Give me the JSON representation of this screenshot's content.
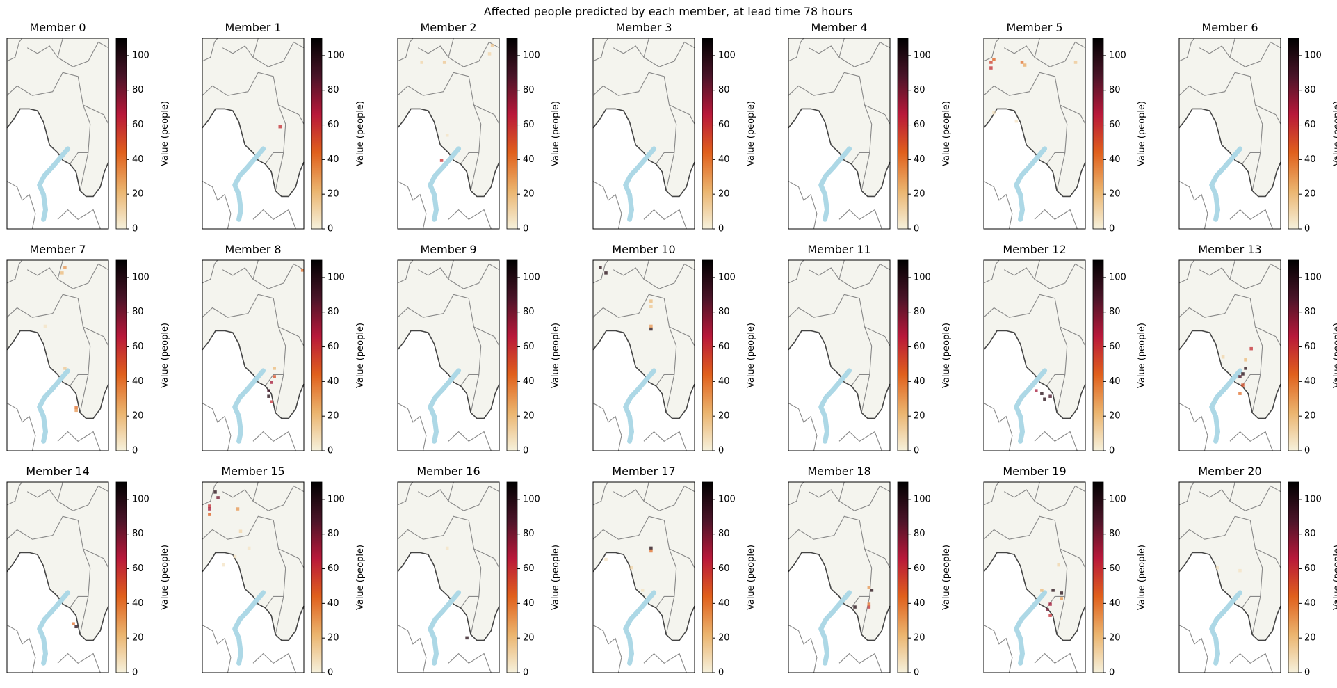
{
  "figure_title": "Affected people predicted by each member, at lead time 78 hours",
  "colormap": [
    "#f6f1dc",
    "#ebb46e",
    "#e0601c",
    "#b8183a",
    "#4a1428",
    "#000000"
  ],
  "cell_alpha": 0.75,
  "chart_data": [
    {
      "type": "map",
      "title": "Member 0",
      "colorbar": {
        "label": "Value (people)",
        "lim": [
          0,
          110
        ],
        "ticks": [
          0,
          20,
          40,
          60,
          80,
          100
        ]
      }
    },
    {
      "type": "map",
      "title": "Member 1",
      "colorbar": {
        "label": "Value (people)",
        "lim": [
          0,
          110
        ],
        "ticks": [
          0,
          20,
          40,
          60,
          80,
          100
        ]
      },
      "cells": {
        "x": [
          27
        ],
        "y": [
          31
        ],
        "values": [
          60
        ]
      }
    },
    {
      "type": "map",
      "title": "Member 2",
      "colorbar": {
        "label": "Value (people)",
        "lim": [
          0,
          110
        ],
        "ticks": [
          0,
          20,
          40,
          60,
          80,
          100
        ]
      },
      "cells": {
        "x": [
          33,
          32,
          16,
          15,
          17,
          8
        ],
        "y": [
          2,
          5,
          8,
          43,
          34,
          8
        ],
        "values": [
          15,
          10,
          15,
          60,
          5,
          10
        ]
      }
    },
    {
      "type": "map",
      "title": "Member 3",
      "colorbar": {
        "label": "Value (people)",
        "lim": [
          0,
          110
        ],
        "ticks": [
          0,
          20,
          40,
          60,
          80,
          100
        ]
      }
    },
    {
      "type": "map",
      "title": "Member 4",
      "colorbar": {
        "label": "Value (people)",
        "lim": [
          0,
          110
        ],
        "ticks": [
          0,
          20,
          40,
          60,
          80,
          100
        ]
      }
    },
    {
      "type": "map",
      "title": "Member 5",
      "colorbar": {
        "label": "Value (people)",
        "lim": [
          0,
          110
        ],
        "ticks": [
          0,
          20,
          40,
          60,
          80,
          100
        ]
      },
      "cells": {
        "x": [
          2,
          2,
          3,
          13,
          14,
          32,
          11,
          3
        ],
        "y": [
          8,
          10,
          7,
          8,
          9,
          8,
          29,
          26
        ],
        "values": [
          55,
          60,
          45,
          40,
          25,
          15,
          5,
          5
        ]
      }
    },
    {
      "type": "map",
      "title": "Member 6",
      "colorbar": {
        "label": "Value (people)",
        "lim": [
          0,
          110
        ],
        "ticks": [
          0,
          20,
          40,
          60,
          80,
          100
        ]
      }
    },
    {
      "type": "map",
      "title": "Member 7",
      "colorbar": {
        "label": "Value (people)",
        "lim": [
          0,
          110
        ],
        "ticks": [
          0,
          20,
          40,
          60,
          80,
          100
        ]
      },
      "cells": {
        "x": [
          20,
          19,
          20,
          24,
          24,
          13
        ],
        "y": [
          2,
          4,
          38,
          52,
          53,
          23
        ],
        "values": [
          30,
          20,
          15,
          40,
          30,
          5
        ]
      }
    },
    {
      "type": "map",
      "title": "Member 8",
      "colorbar": {
        "label": "Value (people)",
        "lim": [
          0,
          110
        ],
        "ticks": [
          0,
          20,
          40,
          60,
          80,
          100
        ]
      },
      "cells": {
        "x": [
          35,
          23,
          24,
          23,
          25,
          24,
          25
        ],
        "y": [
          3,
          46,
          43,
          48,
          41,
          50,
          38
        ],
        "values": [
          40,
          90,
          70,
          100,
          50,
          60,
          20
        ]
      }
    },
    {
      "type": "map",
      "title": "Member 9",
      "colorbar": {
        "label": "Value (people)",
        "lim": [
          0,
          110
        ],
        "ticks": [
          0,
          20,
          40,
          60,
          80,
          100
        ]
      }
    },
    {
      "type": "map",
      "title": "Member 10",
      "colorbar": {
        "label": "Value (people)",
        "lim": [
          0,
          110
        ],
        "ticks": [
          0,
          20,
          40,
          60,
          80,
          100
        ]
      },
      "cells": {
        "x": [
          2,
          4,
          20,
          20,
          20,
          20
        ],
        "y": [
          2,
          4,
          14,
          16,
          24,
          23
        ],
        "values": [
          100,
          100,
          20,
          15,
          100,
          30
        ]
      }
    },
    {
      "type": "map",
      "title": "Member 11",
      "colorbar": {
        "label": "Value (people)",
        "lim": [
          0,
          110
        ],
        "ticks": [
          0,
          20,
          40,
          60,
          80,
          100
        ]
      }
    },
    {
      "type": "map",
      "title": "Member 12",
      "colorbar": {
        "label": "Value (people)",
        "lim": [
          0,
          110
        ],
        "ticks": [
          0,
          20,
          40,
          60,
          80,
          100
        ]
      },
      "cells": {
        "x": [
          20,
          21,
          18,
          23
        ],
        "y": [
          47,
          49,
          46,
          48
        ],
        "values": [
          100,
          100,
          70,
          90
        ]
      }
    },
    {
      "type": "map",
      "title": "Member 13",
      "colorbar": {
        "label": "Value (people)",
        "lim": [
          0,
          110
        ],
        "ticks": [
          0,
          20,
          40,
          60,
          80,
          100
        ]
      },
      "cells": {
        "x": [
          25,
          23,
          22,
          23,
          21,
          22,
          21,
          15
        ],
        "y": [
          31,
          35,
          40,
          38,
          41,
          44,
          47,
          34
        ],
        "values": [
          60,
          20,
          100,
          100,
          90,
          50,
          40,
          10
        ]
      }
    },
    {
      "type": "map",
      "title": "Member 14",
      "colorbar": {
        "label": "Value (people)",
        "lim": [
          0,
          110
        ],
        "ticks": [
          0,
          20,
          40,
          60,
          80,
          100
        ]
      },
      "cells": {
        "x": [
          24,
          23
        ],
        "y": [
          51,
          50
        ],
        "values": [
          100,
          40
        ]
      }
    },
    {
      "type": "map",
      "title": "Member 15",
      "colorbar": {
        "label": "Value (people)",
        "lim": [
          0,
          110
        ],
        "ticks": [
          0,
          20,
          40,
          60,
          80,
          100
        ]
      },
      "cells": {
        "x": [
          2,
          2,
          4,
          5,
          2,
          12,
          13,
          16,
          11,
          7
        ],
        "y": [
          8,
          9,
          3,
          5,
          11,
          9,
          17,
          23,
          26,
          29
        ],
        "values": [
          60,
          70,
          100,
          80,
          45,
          30,
          10,
          5,
          5,
          5
        ]
      }
    },
    {
      "type": "map",
      "title": "Member 16",
      "colorbar": {
        "label": "Value (people)",
        "lim": [
          0,
          110
        ],
        "ticks": [
          0,
          20,
          40,
          60,
          80,
          100
        ]
      },
      "cells": {
        "x": [
          24,
          17
        ],
        "y": [
          55,
          23
        ],
        "values": [
          100,
          5
        ]
      }
    },
    {
      "type": "map",
      "title": "Member 17",
      "colorbar": {
        "label": "Value (people)",
        "lim": [
          0,
          110
        ],
        "ticks": [
          0,
          20,
          40,
          60,
          80,
          100
        ]
      },
      "cells": {
        "x": [
          20,
          20,
          13,
          4,
          17
        ],
        "y": [
          23,
          24,
          30,
          27,
          38
        ],
        "values": [
          100,
          40,
          10,
          5,
          5
        ]
      }
    },
    {
      "type": "map",
      "title": "Member 18",
      "colorbar": {
        "label": "Value (people)",
        "lim": [
          0,
          110
        ],
        "ticks": [
          0,
          20,
          40,
          60,
          80,
          100
        ]
      },
      "cells": {
        "x": [
          29,
          28,
          28,
          23,
          28
        ],
        "y": [
          38,
          44,
          43,
          44,
          37
        ],
        "values": [
          100,
          60,
          40,
          100,
          30
        ]
      }
    },
    {
      "type": "map",
      "title": "Member 19",
      "colorbar": {
        "label": "Value (people)",
        "lim": [
          0,
          110
        ],
        "ticks": [
          0,
          20,
          40,
          60,
          80,
          100
        ]
      },
      "cells": {
        "x": [
          20,
          23,
          22,
          23,
          24,
          27,
          26,
          27
        ],
        "y": [
          38,
          43,
          45,
          47,
          38,
          39,
          29,
          41
        ],
        "values": [
          20,
          70,
          80,
          60,
          100,
          100,
          10,
          30
        ]
      }
    },
    {
      "type": "map",
      "title": "Member 20",
      "colorbar": {
        "label": "Value (people)",
        "lim": [
          0,
          110
        ],
        "ticks": [
          0,
          20,
          40,
          60,
          80,
          100
        ]
      },
      "cells": {
        "x": [
          13,
          21
        ],
        "y": [
          30,
          31
        ],
        "values": [
          5,
          5
        ]
      }
    }
  ]
}
